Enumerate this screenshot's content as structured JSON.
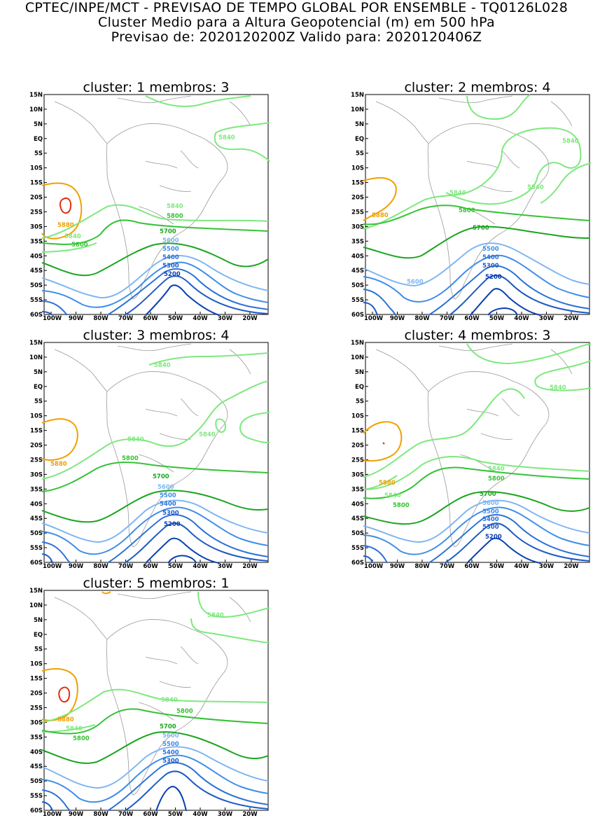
{
  "header": {
    "line1": "CPTEC/INPE/MCT - PREVISAO DE TEMPO GLOBAL POR ENSEMBLE - TQ0126L028",
    "line2": "Cluster Medio para a Altura Geopotencial (m) em 500 hPa",
    "line3": "Previsao de: 2020120200Z    Valido para: 2020120406Z"
  },
  "axes": {
    "lat_ticks": [
      "15N",
      "10N",
      "5N",
      "EQ",
      "5S",
      "10S",
      "15S",
      "20S",
      "25S",
      "30S",
      "35S",
      "40S",
      "45S",
      "50S",
      "55S",
      "60S"
    ],
    "lon_ticks": [
      "100W",
      "90W",
      "80W",
      "70W",
      "60W",
      "50W",
      "40W",
      "30W",
      "20W"
    ]
  },
  "colors": {
    "c5200": "#0a40b0",
    "c5300": "#1f5bc4",
    "c5400": "#2b72d6",
    "c5500": "#3f8ee8",
    "c5600": "#7fb6f2",
    "c5700": "#1aa520",
    "c5800": "#36c236",
    "c5840": "#7ee87e",
    "c5880": "#f0a000",
    "c5920": "#e03010",
    "land": "#999999"
  },
  "panels": [
    {
      "title": "cluster: 1   membros: 3",
      "labels": {
        "l5840a": "5840",
        "l5840b": "5840",
        "l5840c": "5840",
        "l5800a": "5800",
        "l5800b": "5800",
        "l5880": "5880",
        "l5700": "5700",
        "l5600": "5600",
        "l5500": "5500",
        "l5400": "5400",
        "l5300": "5300",
        "l5200": "5200"
      }
    },
    {
      "title": "cluster: 2   membros: 4",
      "labels": {
        "l5840a": "5840",
        "l5840b": "5840",
        "l5840c": "5840",
        "l5800a": "5800",
        "l5880": "5880",
        "l5700": "5700",
        "l5600": "5600",
        "l5500": "5500",
        "l5400": "5400",
        "l5300": "5300",
        "l5200": "5200"
      }
    },
    {
      "title": "cluster: 3   membros: 4",
      "labels": {
        "l5840a": "5840",
        "l5840b": "5840",
        "l5840c": "5840",
        "l5800a": "5800",
        "l5880": "5880",
        "l5700": "5700",
        "l5600": "5600",
        "l5500": "5500",
        "l5400": "5400",
        "l5300": "5300",
        "l5200": "5200"
      }
    },
    {
      "title": "cluster: 4   membros: 3",
      "labels": {
        "l5840a": "5840",
        "l5840b": "5840",
        "l5840c": "5840",
        "l5800a": "5800",
        "l5800b": "5800",
        "l5880": "5880",
        "l5700": "5700",
        "l5600": "5600",
        "l5500": "5500",
        "l5400": "5400",
        "l5300": "5300",
        "l5200": "5200"
      }
    },
    {
      "title": "cluster: 5   membros: 1",
      "labels": {
        "l5840a": "5840",
        "l5840b": "5840",
        "l5840c": "5840",
        "l5800a": "5800",
        "l5800b": "5800",
        "l5880": "5880",
        "l5700": "5700",
        "l5600": "5600",
        "l5500": "5500",
        "l5400": "5400",
        "l5300": "5300"
      }
    }
  ]
}
